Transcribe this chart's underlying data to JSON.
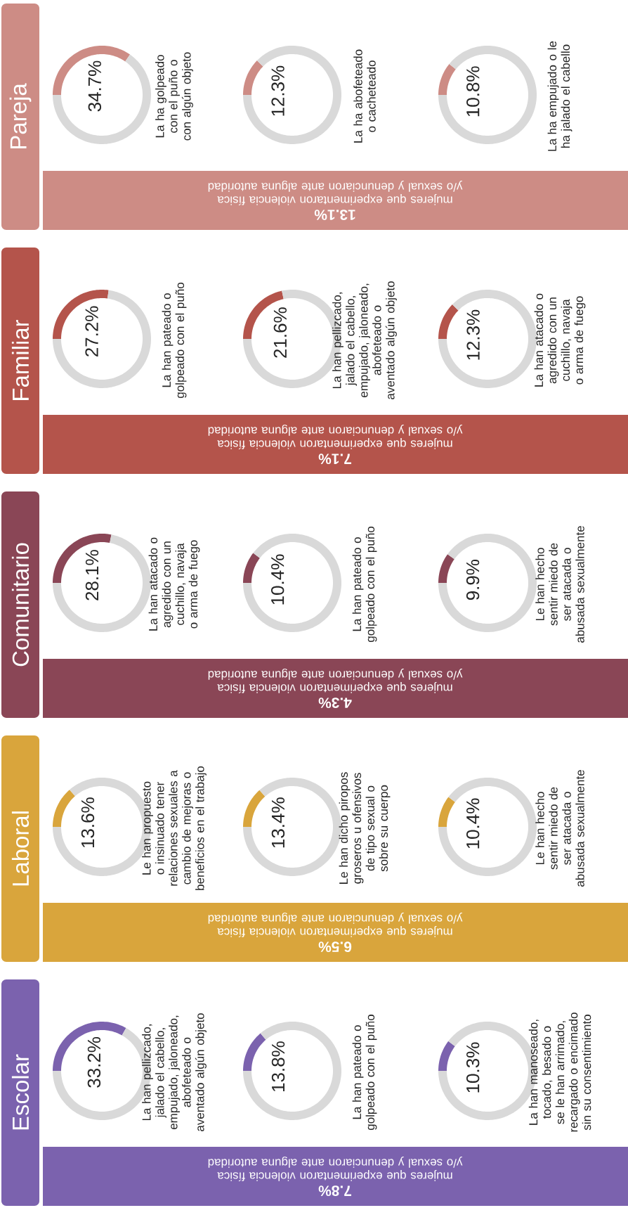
{
  "chart_data": [
    {
      "type": "other",
      "title": "Escolar",
      "colors": [
        "#7b62ae"
      ],
      "annotations": [
        "7.8%",
        "mujeres que experimentaron violencia física y/o sexual y denunciaron ante alguna autoridad"
      ]
    },
    {
      "type": "donut",
      "title": "La han pellizcado, jalado el cabello, empujado, jaloneado, abofeteado o aventado algún objeto",
      "categories": [
        null,
        null
      ],
      "values": [
        33.2,
        66.8
      ],
      "colors": [
        "#7b62ae",
        "#d9d9d9"
      ],
      "value_labels": [
        "33.2%",
        null
      ]
    },
    {
      "type": "donut",
      "title": "La han pateado o golpeado con el puño",
      "categories": [
        null,
        null
      ],
      "values": [
        13.8,
        86.2
      ],
      "colors": [
        "#7b62ae",
        "#d9d9d9"
      ],
      "value_labels": [
        "13.8%",
        null
      ]
    },
    {
      "type": "donut",
      "title": "La han manoseado, tocado, besado o se le han arrimado, recargado o encimado sin su consentimiento",
      "categories": [
        null,
        null
      ],
      "values": [
        10.3,
        89.7
      ],
      "colors": [
        "#7b62ae",
        "#d9d9d9"
      ],
      "value_labels": [
        "10.3%",
        null
      ]
    },
    {
      "type": "other",
      "title": "Laboral",
      "colors": [
        "#d9a53c"
      ],
      "annotations": [
        "6.5%",
        "mujeres que experimentaron violencia física y/o sexual y denunciaron ante alguna autoridad"
      ]
    },
    {
      "type": "donut",
      "title": "Le han propuesto o insinuado tener relaciones sexuales a cambio de mejoras o beneficios en el trabajo",
      "categories": [
        null,
        null
      ],
      "values": [
        13.6,
        86.4
      ],
      "colors": [
        "#d9a53c",
        "#d9d9d9"
      ],
      "value_labels": [
        "13.6%",
        null
      ]
    },
    {
      "type": "donut",
      "title": "Le han dicho piropos groseros u ofensivos de tipo sexual o sobre su cuerpo",
      "categories": [
        null,
        null
      ],
      "values": [
        13.4,
        86.6
      ],
      "colors": [
        "#d9a53c",
        "#d9d9d9"
      ],
      "value_labels": [
        "13.4%",
        null
      ]
    },
    {
      "type": "donut",
      "title": "Le han hecho sentir miedo de ser atacada o abusada sexualmente",
      "categories": [
        null,
        null
      ],
      "values": [
        10.4,
        89.6
      ],
      "colors": [
        "#d9a53c",
        "#d9d9d9"
      ],
      "value_labels": [
        "10.4%",
        null
      ]
    },
    {
      "type": "other",
      "title": "Comunitario",
      "colors": [
        "#8a4656"
      ],
      "annotations": [
        "4.3%",
        "mujeres que experimentaron violencia física y/o sexual y denunciaron ante alguna autoridad"
      ]
    },
    {
      "type": "donut",
      "title": "La han atacado o agredido con un cuchillo, navaja o arma de fuego",
      "categories": [
        null,
        null
      ],
      "values": [
        28.1,
        71.9
      ],
      "colors": [
        "#8a4656",
        "#d9d9d9"
      ],
      "value_labels": [
        "28.1%",
        null
      ]
    },
    {
      "type": "donut",
      "title": "La han pateado o golpeado con el puño",
      "categories": [
        null,
        null
      ],
      "values": [
        10.4,
        89.6
      ],
      "colors": [
        "#8a4656",
        "#d9d9d9"
      ],
      "value_labels": [
        "10.4%",
        null
      ]
    },
    {
      "type": "donut",
      "title": "Le han hecho sentir miedo de ser atacada o abusada sexualmente",
      "categories": [
        null,
        null
      ],
      "values": [
        9.9,
        90.1
      ],
      "colors": [
        "#8a4656",
        "#d9d9d9"
      ],
      "value_labels": [
        "9.9%",
        null
      ]
    },
    {
      "type": "other",
      "title": "Familiar",
      "colors": [
        "#b4544b"
      ],
      "annotations": [
        "7.1%",
        "mujeres que experimentaron violencia física y/o sexual y denunciaron ante alguna autoridad"
      ]
    },
    {
      "type": "donut",
      "title": "La han pateado o golpeado con el puño",
      "categories": [
        null,
        null
      ],
      "values": [
        27.2,
        72.8
      ],
      "colors": [
        "#b4544b",
        "#d9d9d9"
      ],
      "value_labels": [
        "27.2%",
        null
      ]
    },
    {
      "type": "donut",
      "title": "La han pellizcado, jalado el cabello, empujado, jaloneado, abofeteado o aventado algún objeto",
      "categories": [
        null,
        null
      ],
      "values": [
        21.6,
        78.4
      ],
      "colors": [
        "#b4544b",
        "#d9d9d9"
      ],
      "value_labels": [
        "21.6%",
        null
      ]
    },
    {
      "type": "donut",
      "title": "La han atacado o agredido con un cuchillo, navaja o arma de fuego",
      "categories": [
        null,
        null
      ],
      "values": [
        12.3,
        87.7
      ],
      "colors": [
        "#b4544b",
        "#d9d9d9"
      ],
      "value_labels": [
        "12.3%",
        null
      ]
    },
    {
      "type": "other",
      "title": "Pareja",
      "colors": [
        "#cd8c85"
      ],
      "annotations": [
        "13.1%",
        "mujeres que experimentaron violencia física y/o sexual y denunciaron ante alguna autoridad"
      ]
    },
    {
      "type": "donut",
      "title": "La ha golpeado con el puño o con algún objeto",
      "categories": [
        null,
        null
      ],
      "values": [
        34.7,
        65.3
      ],
      "colors": [
        "#cd8c85",
        "#d9d9d9"
      ],
      "value_labels": [
        "34.7%",
        null
      ]
    },
    {
      "type": "donut",
      "title": "La ha abofeteado o cacheteado",
      "categories": [
        null,
        null
      ],
      "values": [
        12.3,
        87.7
      ],
      "colors": [
        "#cd8c85",
        "#d9d9d9"
      ],
      "value_labels": [
        "12.3%",
        null
      ]
    },
    {
      "type": "donut",
      "title": "La ha empujado o le ha jalado el cabello",
      "categories": [
        null,
        null
      ],
      "values": [
        10.8,
        89.2
      ],
      "colors": [
        "#cd8c85",
        "#d9d9d9"
      ],
      "value_labels": [
        "10.8%",
        null
      ]
    }
  ]
}
